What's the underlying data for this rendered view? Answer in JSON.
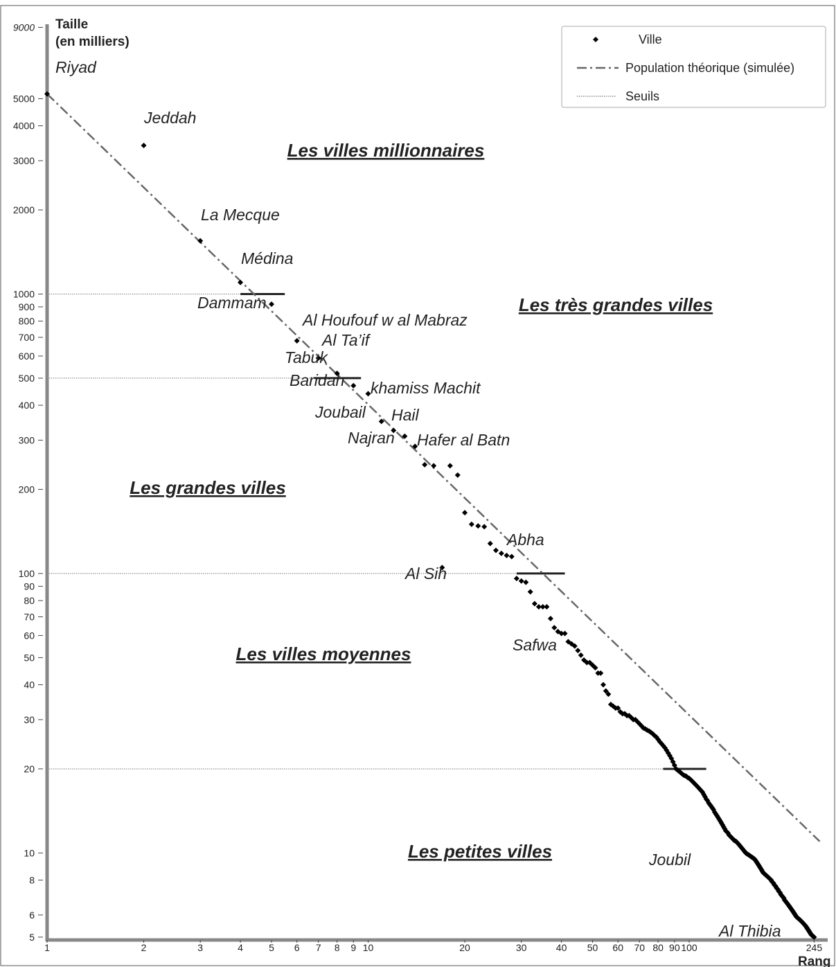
{
  "chart_data": {
    "type": "scatter",
    "ylabel": [
      "Taille",
      "(en milliers)"
    ],
    "xlabel": "Rang",
    "log_x": true,
    "log_y": true,
    "xlim": [
      1,
      270
    ],
    "ylim": [
      4.8,
      9500
    ],
    "xticks": [
      1,
      2,
      3,
      4,
      5,
      6,
      7,
      8,
      9,
      10,
      20,
      30,
      40,
      50,
      60,
      70,
      80,
      90,
      100,
      245
    ],
    "yticks": [
      5,
      6,
      8,
      10,
      20,
      30,
      40,
      50,
      60,
      70,
      80,
      90,
      100,
      200,
      300,
      400,
      500,
      600,
      700,
      800,
      900,
      1000,
      2000,
      3000,
      4000,
      5000,
      9000
    ],
    "legend": "upper right",
    "series": [
      {
        "name": "Ville",
        "color": "#000000",
        "x": [
          1,
          2,
          3,
          4,
          5,
          6,
          7,
          8,
          9,
          10,
          11,
          12,
          13,
          14,
          15,
          16,
          17,
          18,
          19,
          20,
          21,
          22,
          23,
          24,
          25,
          26,
          27,
          28,
          29,
          30,
          31,
          32,
          33,
          34,
          35,
          36,
          37,
          38,
          39,
          40,
          41,
          42,
          43,
          44,
          45,
          46,
          47,
          48,
          49,
          50,
          51,
          52,
          53,
          54,
          55,
          56,
          57,
          58,
          59,
          60,
          61,
          62,
          63,
          64,
          65,
          66,
          67,
          68,
          69,
          70,
          71,
          72,
          73,
          74,
          75,
          76,
          77,
          78,
          79,
          80,
          81,
          82,
          83,
          84,
          85,
          86,
          87,
          88,
          89,
          90,
          91,
          92,
          93,
          94,
          95,
          96,
          97,
          98,
          99,
          100,
          101,
          102,
          103,
          104,
          105,
          106,
          107,
          108,
          109,
          110,
          111,
          112,
          113,
          114,
          115,
          116,
          117,
          118,
          119,
          120,
          121,
          122,
          123,
          124,
          125,
          126,
          127,
          128,
          129,
          130,
          131,
          132,
          133,
          134,
          135,
          136,
          137,
          138,
          139,
          140,
          141,
          142,
          143,
          144,
          145,
          146,
          147,
          148,
          149,
          150,
          151,
          152,
          153,
          154,
          155,
          156,
          157,
          158,
          159,
          160,
          161,
          162,
          163,
          164,
          165,
          166,
          167,
          168,
          169,
          170,
          171,
          172,
          173,
          174,
          175,
          176,
          177,
          178,
          179,
          180,
          181,
          182,
          183,
          184,
          185,
          186,
          187,
          188,
          189,
          190,
          191,
          192,
          193,
          194,
          195,
          196,
          197,
          198,
          199,
          200,
          201,
          202,
          203,
          204,
          205,
          206,
          207,
          208,
          209,
          210,
          211,
          212,
          213,
          214,
          215,
          216,
          217,
          218,
          219,
          220,
          221,
          222,
          223,
          224,
          225,
          226,
          227,
          228,
          229,
          230,
          231,
          232,
          233,
          234,
          235,
          236,
          237,
          238,
          239,
          240,
          241,
          242,
          243,
          244,
          245
        ],
        "values": [
          5200,
          3400,
          1550,
          1100,
          920,
          680,
          590,
          520,
          470,
          440,
          350,
          325,
          310,
          285,
          245,
          243,
          105,
          243,
          225,
          165,
          150,
          148,
          147,
          128,
          121,
          118,
          116,
          115,
          96,
          94,
          93,
          86,
          78,
          76,
          76,
          76,
          69,
          64,
          62,
          61,
          61,
          57,
          56,
          55,
          53,
          51,
          49,
          48,
          48,
          47,
          46,
          44,
          44,
          40,
          38,
          37,
          34,
          33.5,
          33,
          33,
          32,
          31.5,
          31.5,
          31,
          31,
          30.5,
          30,
          30,
          29.5,
          29,
          28.5,
          28,
          27.8,
          27.5,
          27.3,
          27,
          26.7,
          26.3,
          26,
          25.5,
          25,
          24.6,
          24.2,
          23.8,
          23.3,
          22.8,
          22.3,
          21.8,
          21.2,
          20.6,
          20,
          19.8,
          19.6,
          19.4,
          19.2,
          19,
          18.9,
          18.8,
          18.6,
          18.5,
          18.3,
          18.1,
          17.9,
          17.7,
          17.5,
          17.3,
          17.1,
          16.9,
          16.7,
          16.5,
          16.2,
          15.9,
          15.6,
          15.4,
          15.1,
          14.9,
          14.7,
          14.5,
          14.3,
          14,
          13.8,
          13.6,
          13.4,
          13.2,
          13,
          12.8,
          12.6,
          12.4,
          12.2,
          12,
          11.9,
          11.8,
          11.6,
          11.5,
          11.4,
          11.3,
          11.2,
          11.1,
          11.05,
          11,
          10.9,
          10.8,
          10.7,
          10.6,
          10.5,
          10.4,
          10.3,
          10.2,
          10.1,
          10,
          9.95,
          9.9,
          9.85,
          9.8,
          9.75,
          9.7,
          9.65,
          9.6,
          9.55,
          9.5,
          9.4,
          9.3,
          9.2,
          9.1,
          9,
          8.9,
          8.8,
          8.7,
          8.6,
          8.5,
          8.45,
          8.4,
          8.35,
          8.3,
          8.25,
          8.2,
          8.15,
          8.1,
          8.05,
          8,
          7.9,
          7.85,
          7.8,
          7.7,
          7.65,
          7.6,
          7.5,
          7.45,
          7.4,
          7.3,
          7.25,
          7.2,
          7.1,
          7.05,
          7,
          6.95,
          6.9,
          6.8,
          6.75,
          6.7,
          6.65,
          6.6,
          6.55,
          6.5,
          6.45,
          6.4,
          6.35,
          6.3,
          6.25,
          6.2,
          6.15,
          6.1,
          6.05,
          6,
          5.95,
          5.9,
          5.88,
          5.85,
          5.82,
          5.8,
          5.77,
          5.74,
          5.71,
          5.68,
          5.65,
          5.62,
          5.59,
          5.56,
          5.53,
          5.5,
          5.46,
          5.42,
          5.38,
          5.34,
          5.3,
          5.26,
          5.22,
          5.18,
          5.14,
          5.1,
          5.08,
          5.06,
          5.04,
          5.02,
          5
        ]
      },
      {
        "name": "Population théorique (simulée)",
        "color": "#666666",
        "x": [
          1,
          255
        ],
        "values": [
          5200,
          11
        ]
      }
    ],
    "thresholds": {
      "name": "Seuils",
      "color": "#222222",
      "values": [
        1000,
        500,
        100,
        20
      ],
      "bars": [
        [
          4,
          5.5
        ],
        [
          6.8,
          9.5
        ],
        [
          29,
          41
        ],
        [
          83,
          113
        ]
      ]
    },
    "city_labels": [
      "Riyad",
      "Jeddah",
      "La Mecque",
      "Médina",
      "Dammam",
      "Al Houfouf w al Mabraz",
      "Al Ta’if",
      "Tabuk",
      "Baridah",
      "khamiss Machit",
      "Joubail",
      "Hail",
      "Najran",
      "Hafer al Batn",
      "Abha",
      "Al Sih",
      "Safwa",
      "Joubil",
      "Al Thibia"
    ],
    "region_labels": [
      "Les villes millionnaires",
      "Les très grandes villes",
      "Les grandes villes",
      "Les villes moyennes",
      "Les petites villes"
    ]
  }
}
